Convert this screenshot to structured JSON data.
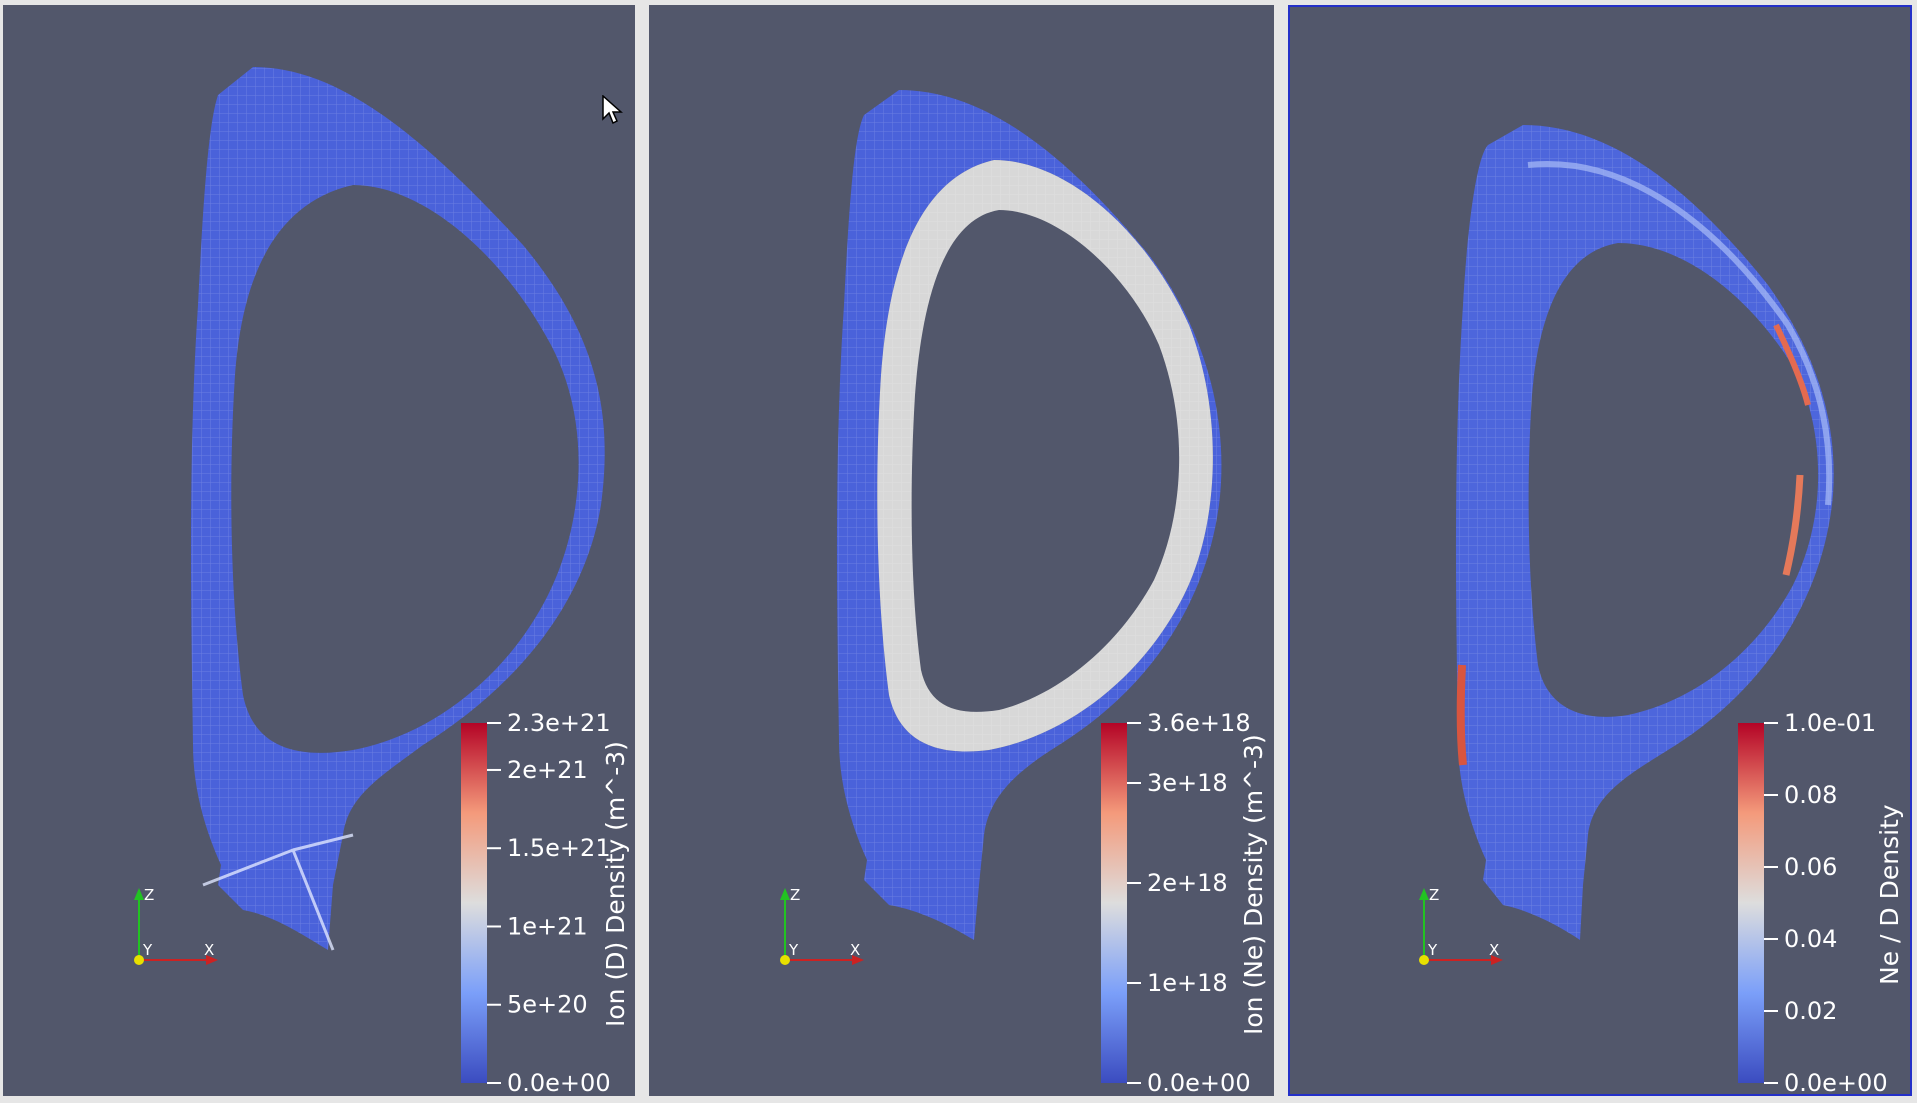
{
  "views": [
    {
      "id": "view1",
      "active": false,
      "colorbar": {
        "title": "Ion (D) Density (m^-3)",
        "min": 0,
        "max": 2.3e+21,
        "min_label": "0.0e+00",
        "max_label": "2.3e+21",
        "ticks": [
          {
            "value": 5e+20,
            "label": "5e+20"
          },
          {
            "value": 1e+21,
            "label": "1e+21"
          },
          {
            "value": 1.5e+21,
            "label": "1.5e+21"
          },
          {
            "value": 2e+21,
            "label": "2e+21"
          }
        ]
      },
      "axes_triad": {
        "x": "X",
        "y": "Y",
        "z": "Z"
      }
    },
    {
      "id": "view2",
      "active": false,
      "colorbar": {
        "title": "Ion (Ne) Density (m^-3)",
        "min": 0,
        "max": 3.6e+18,
        "min_label": "0.0e+00",
        "max_label": "3.6e+18",
        "ticks": [
          {
            "value": 1e+18,
            "label": "1e+18"
          },
          {
            "value": 2e+18,
            "label": "2e+18"
          },
          {
            "value": 3e+18,
            "label": "3e+18"
          }
        ]
      },
      "axes_triad": {
        "x": "X",
        "y": "Y",
        "z": "Z"
      }
    },
    {
      "id": "view3",
      "active": true,
      "colorbar": {
        "title": "Ne / D Density",
        "min": 0,
        "max": 0.1,
        "min_label": "0.0e+00",
        "max_label": "1.0e-01",
        "ticks": [
          {
            "value": 0.02,
            "label": "0.02"
          },
          {
            "value": 0.04,
            "label": "0.04"
          },
          {
            "value": 0.06,
            "label": "0.06"
          },
          {
            "value": 0.08,
            "label": "0.08"
          }
        ]
      },
      "axes_triad": {
        "x": "X",
        "y": "Y",
        "z": "Z"
      }
    }
  ],
  "colors": {
    "background": "#52576b",
    "colormap_low": "#3b4cc0",
    "colormap_mid": "#dddddd",
    "colormap_high": "#b40426",
    "active_view_border": "#2430c8"
  }
}
